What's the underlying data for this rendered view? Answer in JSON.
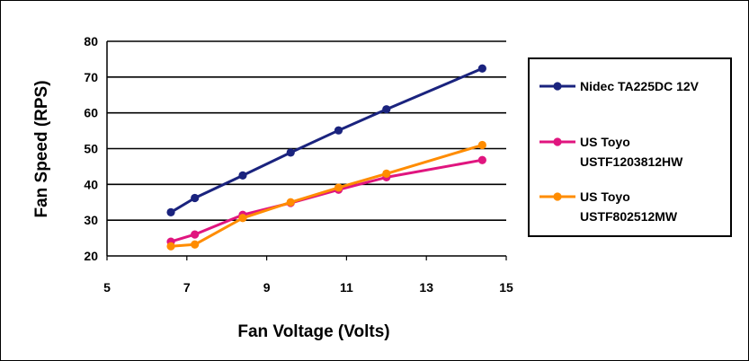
{
  "chart_data": {
    "type": "line",
    "title": "",
    "xlabel": "Fan Voltage (Volts)",
    "ylabel": "Fan Speed (RPS)",
    "xlim": [
      5,
      15
    ],
    "ylim": [
      20,
      80
    ],
    "xticks": [
      "5",
      "7",
      "9",
      "11",
      "13",
      "15"
    ],
    "yticks": [
      "20",
      "30",
      "40",
      "50",
      "60",
      "70",
      "80"
    ],
    "grid": "horizontal",
    "legend_position": "right",
    "series": [
      {
        "name_lines": [
          "Nidec TA225DC 12V"
        ],
        "color": "#1a237e",
        "x": [
          6.6,
          7.2,
          8.4,
          9.6,
          10.8,
          12.0,
          14.4
        ],
        "y": [
          32.2,
          36.2,
          42.5,
          48.9,
          55.1,
          61.0,
          72.4
        ]
      },
      {
        "name_lines": [
          "US Toyo",
          "USTF1203812HW"
        ],
        "color": "#e0157f",
        "x": [
          6.6,
          7.2,
          8.4,
          9.6,
          10.8,
          12.0,
          14.4
        ],
        "y": [
          24.0,
          26.0,
          31.5,
          34.8,
          38.5,
          42.0,
          46.8
        ]
      },
      {
        "name_lines": [
          "US Toyo",
          "USTF802512MW"
        ],
        "color": "#ff8c00",
        "x": [
          6.6,
          7.2,
          8.4,
          9.6,
          10.8,
          12.0,
          14.4
        ],
        "y": [
          22.7,
          23.2,
          30.6,
          35.0,
          39.1,
          43.0,
          51.0
        ]
      }
    ]
  }
}
